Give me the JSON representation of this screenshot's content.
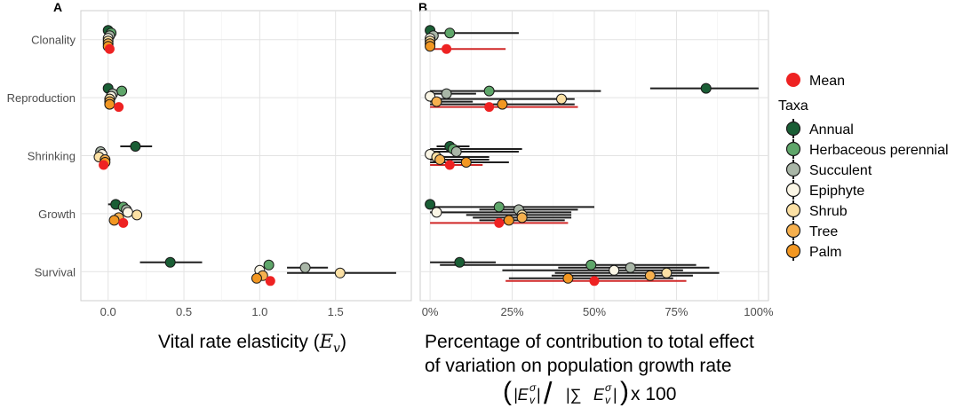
{
  "colors": {
    "Mean": "#ee2222",
    "Annual": "#1a5e35",
    "Herbaceous perennial": "#5fa66a",
    "Succulent": "#a9b6a7",
    "Epiphyte": "#fbf6e6",
    "Shrub": "#fbe0a4",
    "Tree": "#f6b04e",
    "Palm": "#f29722"
  },
  "legend": {
    "mean_label": "Mean",
    "taxa_title": "Taxa",
    "taxa": [
      "Annual",
      "Herbaceous perennial",
      "Succulent",
      "Epiphyte",
      "Shrub",
      "Tree",
      "Palm"
    ]
  },
  "panel_a": {
    "tag": "A",
    "xlabel": "Vital rate elasticity (",
    "xlabel_sym": "E",
    "xlabel_sub": "v",
    "xlabel_close": ")"
  },
  "panel_b": {
    "tag": "B",
    "xlabel_line1": "Percentage of contribution to total effect",
    "xlabel_line2": "of variation on population growth rate",
    "xlabel_formula_tail": "x 100"
  },
  "chart_data": [
    {
      "type": "scatter",
      "panel": "A",
      "xlabel": "Vital rate elasticity (Ev)",
      "xlim": [
        -0.18,
        2.0
      ],
      "xticks": [
        0.0,
        0.5,
        1.0,
        1.5
      ],
      "xtick_labels": [
        "0.0",
        "0.5",
        "1.0",
        "1.5"
      ],
      "categories": [
        "Clonality",
        "Reproduction",
        "Shrinking",
        "Growth",
        "Survival"
      ],
      "grid": true,
      "series": [
        {
          "name": "Annual",
          "values": [
            0.0,
            0.0,
            0.18,
            0.05,
            0.41
          ],
          "lo": [
            null,
            null,
            0.08,
            0.0,
            0.21
          ],
          "hi": [
            null,
            null,
            0.29,
            0.1,
            0.62
          ]
        },
        {
          "name": "Herbaceous perennial",
          "values": [
            0.02,
            0.09,
            null,
            0.1,
            1.06
          ],
          "lo": [
            null,
            null,
            null,
            null,
            null
          ],
          "hi": [
            null,
            null,
            null,
            null,
            null
          ]
        },
        {
          "name": "Succulent",
          "values": [
            0.01,
            0.03,
            -0.05,
            0.12,
            1.3
          ],
          "lo": [
            null,
            null,
            null,
            null,
            1.18
          ],
          "hi": [
            null,
            null,
            null,
            null,
            1.45
          ]
        },
        {
          "name": "Epiphyte",
          "values": [
            0.0,
            0.02,
            -0.04,
            0.13,
            1.0
          ],
          "lo": [
            null,
            null,
            null,
            null,
            null
          ],
          "hi": [
            null,
            null,
            null,
            null,
            null
          ]
        },
        {
          "name": "Shrub",
          "values": [
            0.0,
            0.01,
            -0.06,
            0.19,
            1.53
          ],
          "lo": [
            null,
            null,
            null,
            null,
            1.18
          ],
          "hi": [
            null,
            null,
            null,
            null,
            1.9
          ]
        },
        {
          "name": "Tree",
          "values": [
            0.0,
            0.01,
            -0.02,
            0.07,
            1.02
          ],
          "lo": [
            null,
            null,
            null,
            null,
            null
          ],
          "hi": [
            null,
            null,
            null,
            null,
            null
          ]
        },
        {
          "name": "Palm",
          "values": [
            0.0,
            0.01,
            -0.02,
            0.04,
            0.98
          ],
          "lo": [
            null,
            null,
            null,
            null,
            null
          ],
          "hi": [
            null,
            null,
            null,
            null,
            null
          ]
        },
        {
          "name": "Mean",
          "values": [
            0.01,
            0.07,
            -0.03,
            0.1,
            1.07
          ],
          "lo": [
            null,
            null,
            null,
            null,
            null
          ],
          "hi": [
            null,
            null,
            null,
            null,
            null
          ]
        }
      ]
    },
    {
      "type": "scatter",
      "panel": "B",
      "xlabel": "Percentage of contribution to total effect of variation on population growth rate (|Ev^sigma| / |sum Ev^sigma|) x 100",
      "xlim": [
        -0.03,
        1.03
      ],
      "xticks": [
        0.0,
        0.25,
        0.5,
        0.75,
        1.0
      ],
      "xtick_labels": [
        "0%",
        "25%",
        "50%",
        "75%",
        "100%"
      ],
      "categories": [
        "Clonality",
        "Reproduction",
        "Shrinking",
        "Growth",
        "Survival"
      ],
      "grid": true,
      "series": [
        {
          "name": "Annual",
          "values": [
            0.0,
            0.84,
            0.06,
            0.0,
            0.09
          ],
          "lo": [
            null,
            0.67,
            0.02,
            null,
            0.0
          ],
          "hi": [
            null,
            1.0,
            0.12,
            null,
            0.2
          ]
        },
        {
          "name": "Herbaceous perennial",
          "values": [
            0.06,
            0.18,
            0.07,
            0.21,
            0.49
          ],
          "lo": [
            0.0,
            0.0,
            0.0,
            0.0,
            0.03
          ],
          "hi": [
            0.27,
            0.52,
            0.28,
            0.5,
            0.81
          ]
        },
        {
          "name": "Succulent",
          "values": [
            0.01,
            0.05,
            0.08,
            0.27,
            0.61
          ],
          "lo": [
            null,
            0.0,
            0.0,
            0.15,
            0.39
          ],
          "hi": [
            null,
            0.14,
            0.27,
            0.45,
            0.85
          ]
        },
        {
          "name": "Epiphyte",
          "values": [
            0.0,
            0.0,
            0.0,
            0.02,
            0.56
          ],
          "lo": [
            null,
            null,
            null,
            0.0,
            0.22
          ],
          "hi": [
            null,
            null,
            null,
            0.43,
            0.77
          ]
        },
        {
          "name": "Shrub",
          "values": [
            0.0,
            0.4,
            0.02,
            0.28,
            0.72
          ],
          "lo": [
            null,
            0.02,
            0.0,
            0.11,
            0.38
          ],
          "hi": [
            null,
            0.44,
            0.18,
            0.43,
            0.88
          ]
        },
        {
          "name": "Tree",
          "values": [
            0.0,
            0.02,
            0.03,
            0.28,
            0.67
          ],
          "lo": [
            null,
            0.0,
            0.0,
            0.13,
            0.37
          ],
          "hi": [
            null,
            0.13,
            0.18,
            0.43,
            0.8
          ]
        },
        {
          "name": "Palm",
          "values": [
            0.0,
            0.22,
            0.11,
            0.24,
            0.42
          ],
          "lo": [
            null,
            0.0,
            0.0,
            0.15,
            0.24
          ],
          "hi": [
            null,
            0.44,
            0.24,
            0.41,
            0.74
          ]
        },
        {
          "name": "Mean",
          "values": [
            0.05,
            0.18,
            0.06,
            0.21,
            0.5
          ],
          "lo": [
            0.0,
            0.0,
            0.0,
            0.0,
            0.23
          ],
          "hi": [
            0.23,
            0.45,
            0.16,
            0.42,
            0.78
          ]
        }
      ]
    }
  ]
}
